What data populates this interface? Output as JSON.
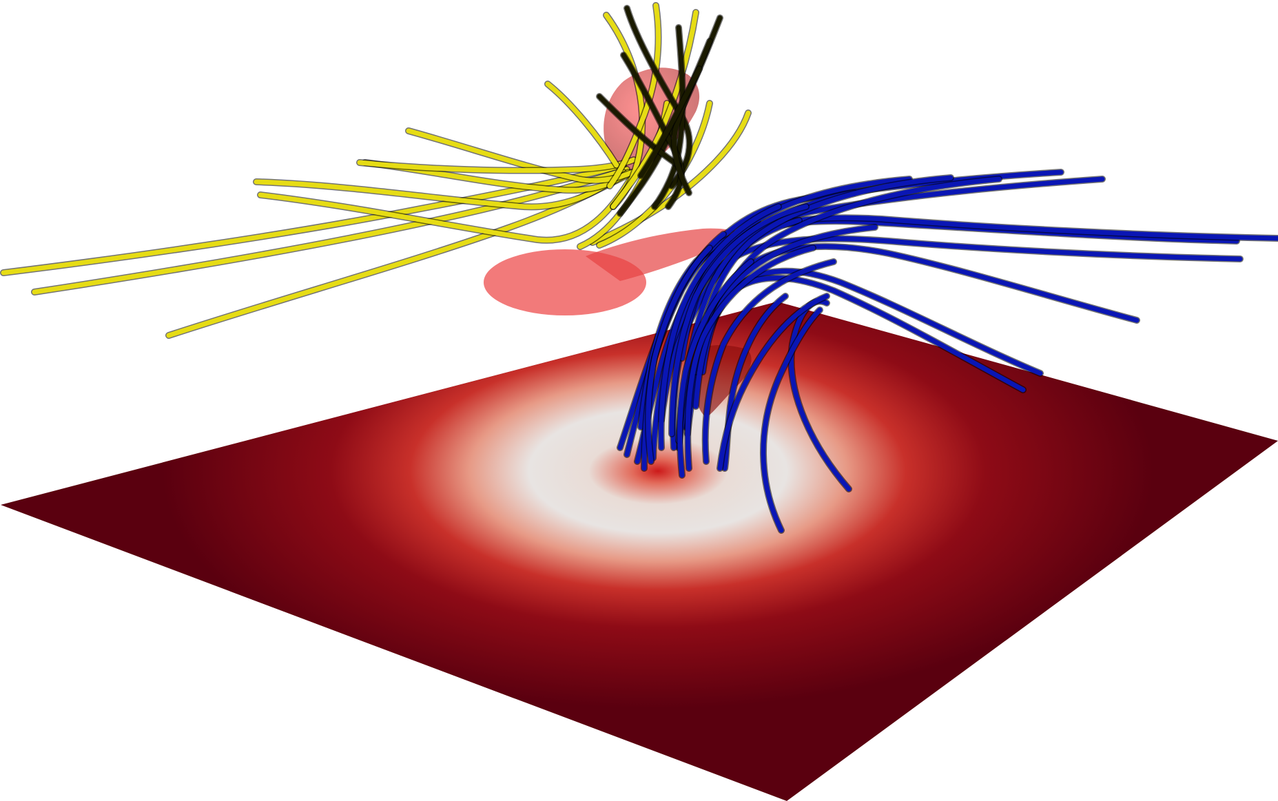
{
  "scene": {
    "background_color": "#ffffff",
    "plane": {
      "edge_color": "#5a000f",
      "center_color": "#e8e4e2",
      "hot_color": "#cc1a1a",
      "pattern": "radial ring"
    },
    "fieldlines_left": {
      "color": "#e6dc14",
      "shade_color": "#1a1a00",
      "count": 22
    },
    "fieldlines_right": {
      "color": "#0a16b4",
      "count": 26
    },
    "isosurface": {
      "color": "#e01010",
      "opacity": 0.55
    }
  }
}
